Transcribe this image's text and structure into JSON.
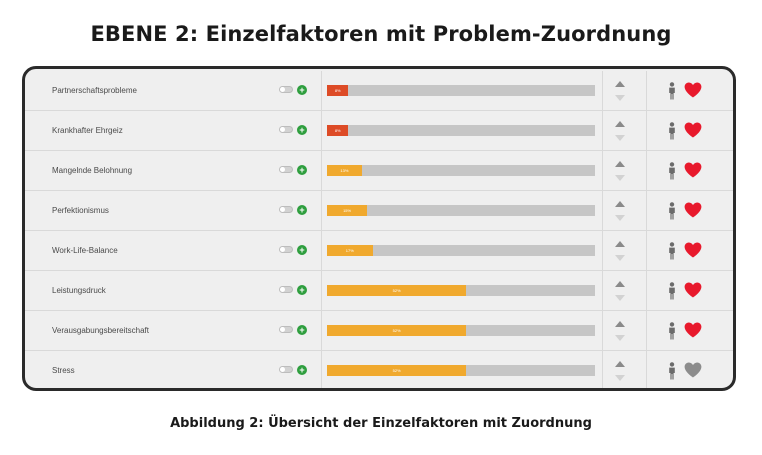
{
  "title": "EBENE 2: Einzelfaktoren mit Problem-Zuordnung",
  "caption": "Abbildung 2: Übersicht der Einzelfaktoren mit Zuordnung",
  "colors": {
    "red_fill": "#dd4b26",
    "orange_fill": "#f0a92e",
    "track": "#c6c6c6",
    "heart_active": "#e8192c",
    "heart_inactive": "#8c8c8c",
    "person": "#6b6b6b",
    "add_green": "#2e9e3e"
  },
  "icons": {
    "toggle": "toggle-switch-icon",
    "add": "plus-circle-icon",
    "up": "arrow-up-icon",
    "down": "arrow-down-icon",
    "person": "person-icon",
    "heart": "heart-icon"
  },
  "rows": [
    {
      "label": "Partnerschaftsprobleme",
      "percent": 8,
      "percent_label": "8%",
      "fill": "red",
      "heart_active": true
    },
    {
      "label": "Krankhafter Ehrgeiz",
      "percent": 8,
      "percent_label": "8%",
      "fill": "red",
      "heart_active": true
    },
    {
      "label": "Mangelnde Belohnung",
      "percent": 13,
      "percent_label": "13%",
      "fill": "orange",
      "heart_active": true
    },
    {
      "label": "Perfektionismus",
      "percent": 15,
      "percent_label": "15%",
      "fill": "orange",
      "heart_active": true
    },
    {
      "label": "Work-Life-Balance",
      "percent": 17,
      "percent_label": "17%",
      "fill": "orange",
      "heart_active": true
    },
    {
      "label": "Leistungsdruck",
      "percent": 52,
      "percent_label": "52%",
      "fill": "orange",
      "heart_active": true
    },
    {
      "label": "Verausgabungsbereitschaft",
      "percent": 52,
      "percent_label": "52%",
      "fill": "orange",
      "heart_active": true
    },
    {
      "label": "Stress",
      "percent": 52,
      "percent_label": "52%",
      "fill": "orange",
      "heart_active": false
    }
  ]
}
